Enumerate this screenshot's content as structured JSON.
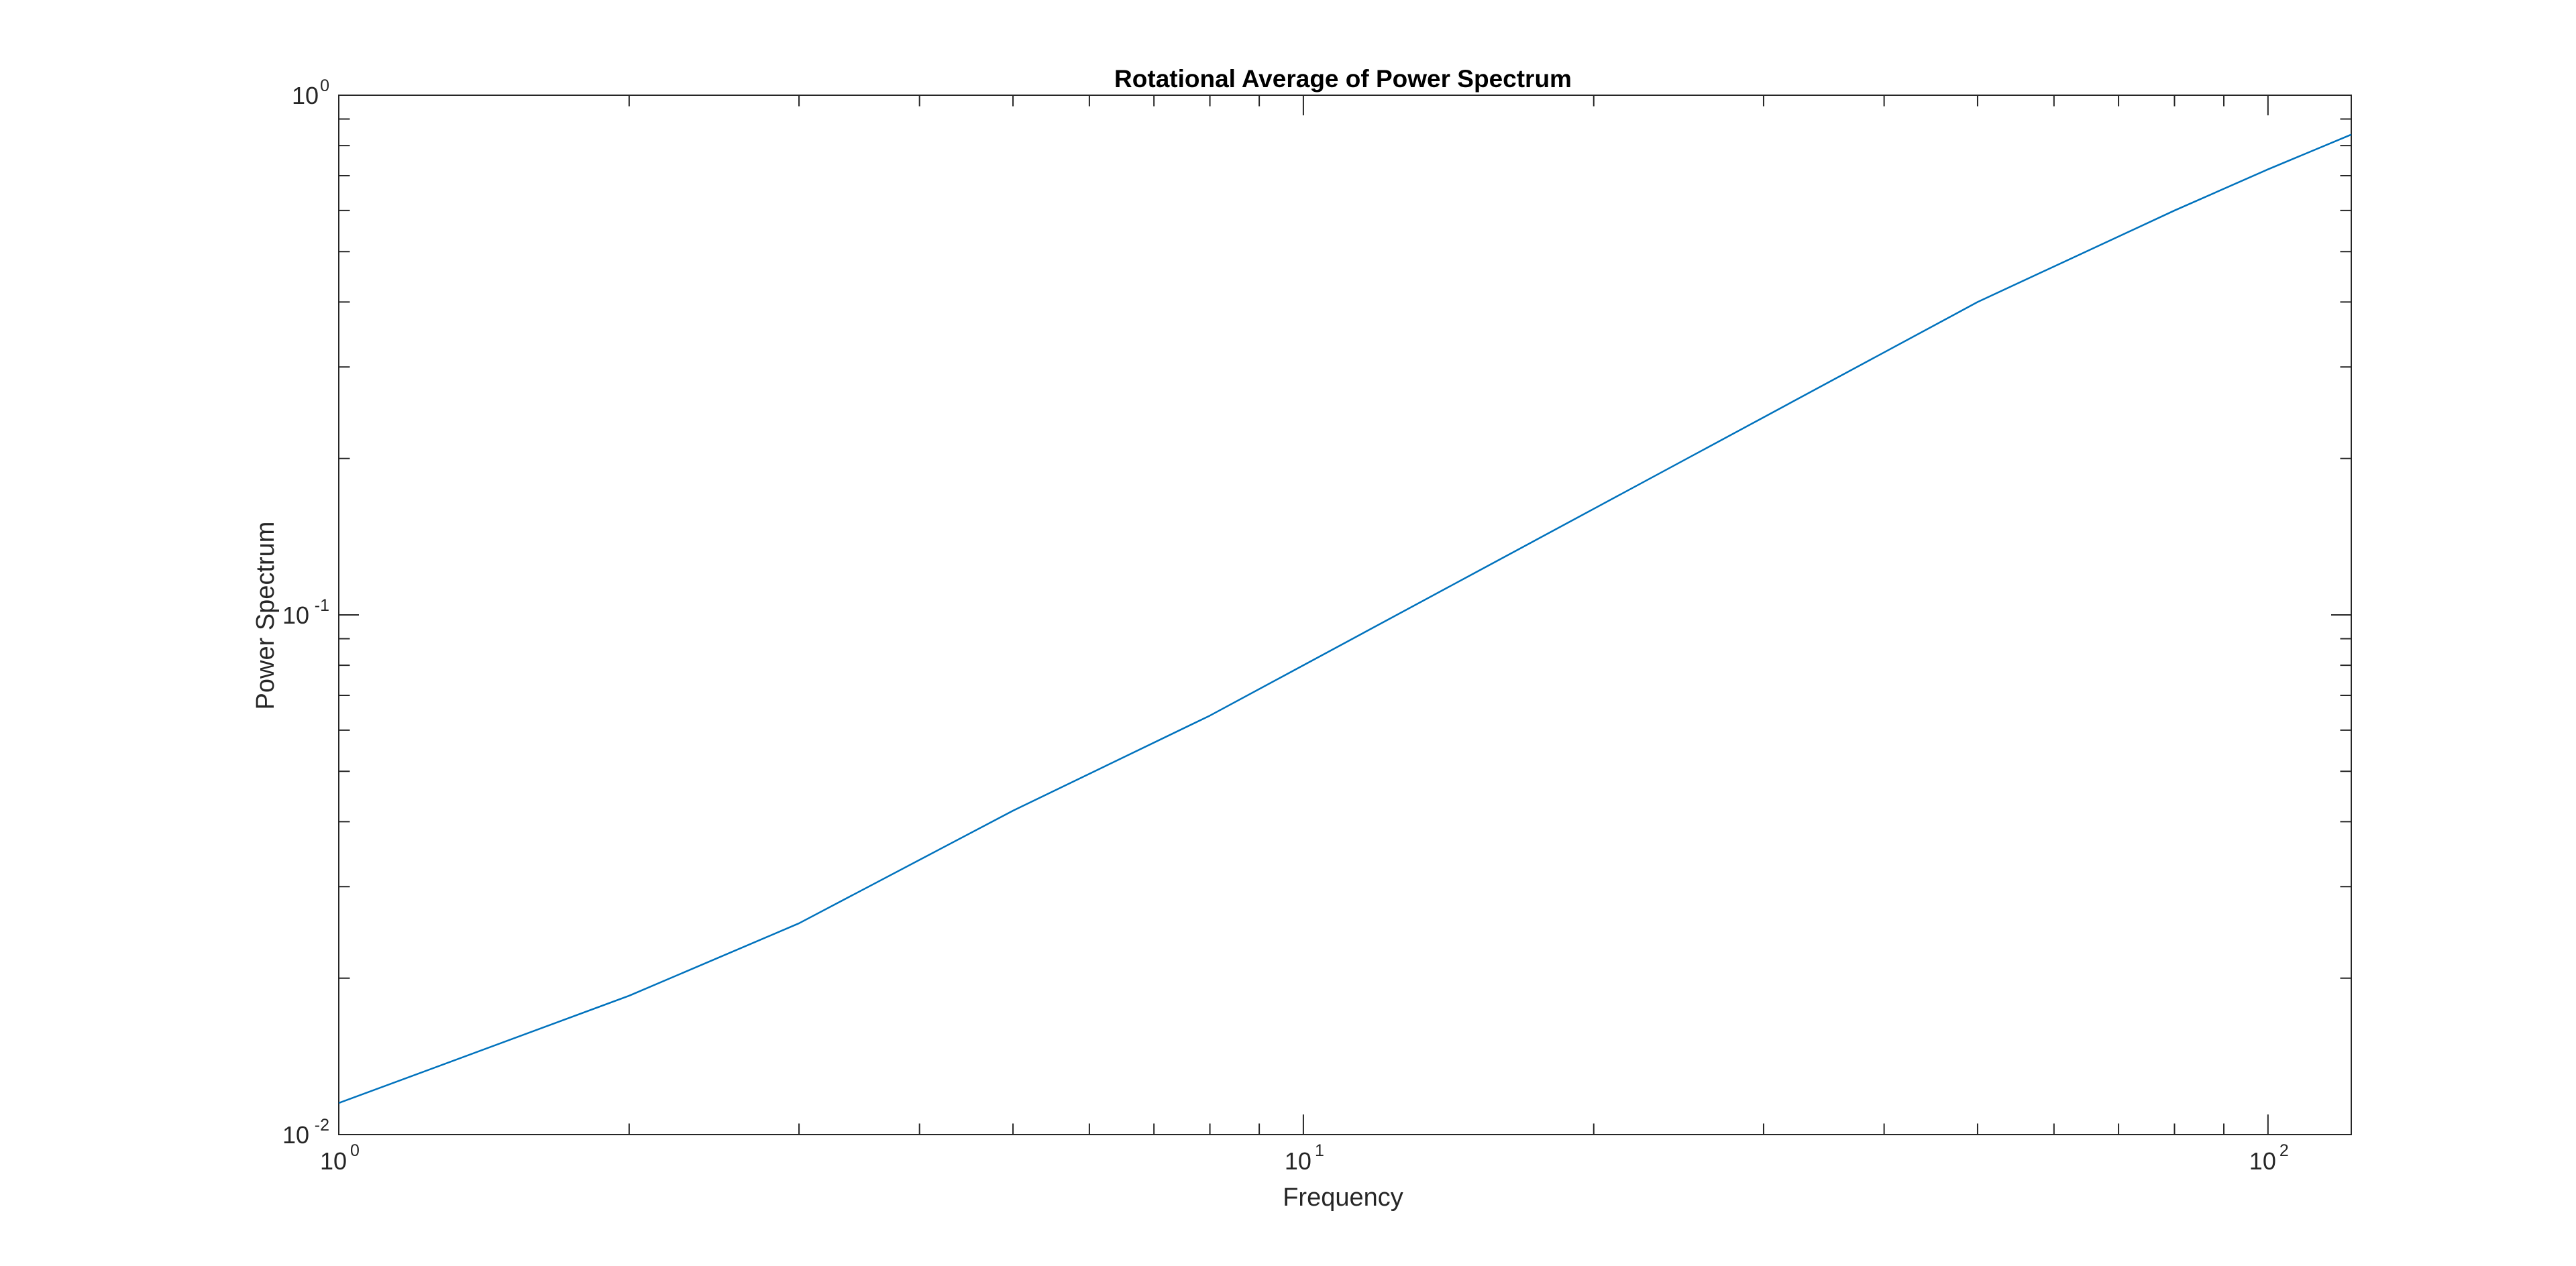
{
  "chart_data": {
    "type": "line",
    "title": "Rotational Average of Power Spectrum",
    "xlabel": "Frequency",
    "ylabel": "Power Spectrum",
    "xscale": "log",
    "yscale": "log",
    "xlim": [
      1,
      122
    ],
    "ylim": [
      0.01,
      1
    ],
    "x_ticks": [
      {
        "base": "10",
        "exp": "0",
        "value": 1
      },
      {
        "base": "10",
        "exp": "1",
        "value": 10
      },
      {
        "base": "10",
        "exp": "2",
        "value": 100
      }
    ],
    "y_ticks": [
      {
        "base": "10",
        "exp": "-2",
        "value": 0.01
      },
      {
        "base": "10",
        "exp": "-1",
        "value": 0.1
      },
      {
        "base": "10",
        "exp": "0",
        "value": 1
      }
    ],
    "grid": false,
    "box": true,
    "line_color": "#0072BD",
    "axis_color": "#262626",
    "series": [
      {
        "x": [
          1,
          2,
          3,
          5,
          8,
          10,
          15,
          20,
          30,
          50,
          80,
          100,
          122
        ],
        "y": [
          0.0115,
          0.0185,
          0.0255,
          0.042,
          0.064,
          0.08,
          0.12,
          0.16,
          0.24,
          0.4,
          0.6,
          0.72,
          0.84
        ]
      }
    ]
  }
}
